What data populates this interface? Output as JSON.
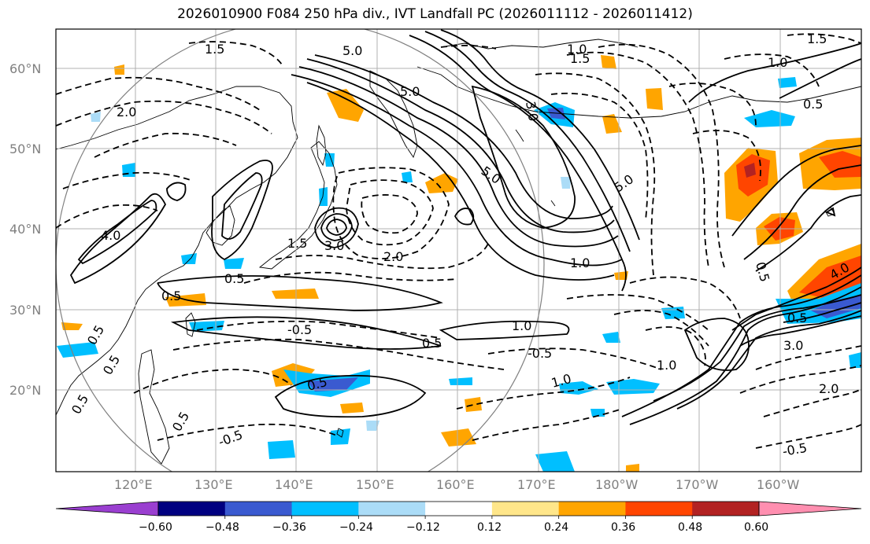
{
  "title": "2026010900 F084 250 hPa div., IVT Landfall PC (2026011112 - 2026011412)",
  "lat_labels": [
    "60°N",
    "50°N",
    "40°N",
    "30°N",
    "20°N"
  ],
  "lon_labels": [
    "120°E",
    "130°E",
    "140°E",
    "150°E",
    "160°E",
    "170°E",
    "180°W",
    "170°W",
    "160°W"
  ],
  "colorbar": {
    "tick_labels": [
      "−0.60",
      "−0.48",
      "−0.36",
      "−0.24",
      "−0.12",
      "0.12",
      "0.24",
      "0.36",
      "0.48",
      "0.60"
    ],
    "colors": [
      "#9a3fd0",
      "#000080",
      "#3a5ad0",
      "#00bfff",
      "#abdcf7",
      "#ffffff",
      "#ffe68a",
      "#ffa500",
      "#ff4500",
      "#b22222",
      "#ff8fb0"
    ]
  },
  "contour_labels": [
    "5.0",
    "5.0",
    "5.0",
    "5.0",
    "4.0",
    "4.0",
    "3.0",
    "3.0",
    "3.0",
    "2.0",
    "2.0",
    "2.0",
    "1.5",
    "1.5",
    "1.5",
    "1.5",
    "1.0",
    "1.0",
    "1.0",
    "1.0",
    "1.0",
    "1.0",
    "0.5",
    "0.5",
    "0.5",
    "0.5",
    "0.5",
    "0.5",
    "0.5",
    "0.5",
    "0.5",
    "0.5",
    "0.5",
    "-0.5",
    "-0.5",
    "-0.5",
    "-0.5"
  ],
  "colors": {
    "grid": "#b0b0b0",
    "frame": "#000000",
    "circle": "#808080"
  }
}
